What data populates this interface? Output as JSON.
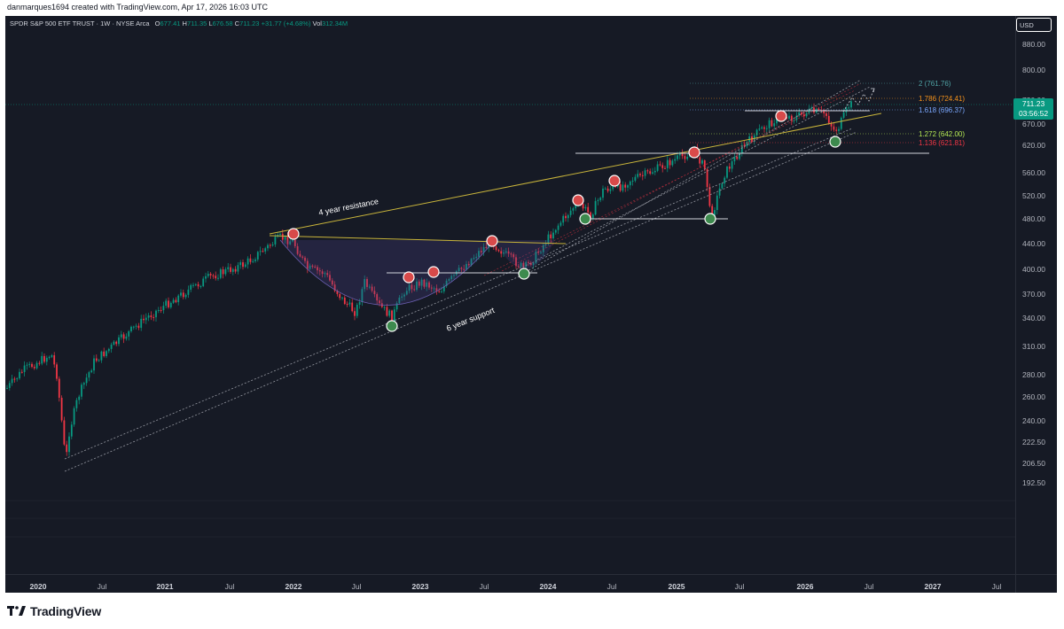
{
  "header": {
    "text": "danmarques1694 created with TradingView.com, Apr 17, 2026 16:03 UTC"
  },
  "legend": {
    "symbol": "SPDR S&P 500 ETF TRUST · 1W · NYSE Arca",
    "o_label": "O",
    "o": "677.41",
    "h_label": "H",
    "h": "711.35",
    "l_label": "L",
    "l": "676.58",
    "c_label": "C",
    "c": "711.23",
    "change": "+31.77 (+4.68%)",
    "vol_label": "Vol",
    "vol": "312.34M"
  },
  "currency": "USD",
  "price_scale": [
    "880.00",
    "800.00",
    "730.00",
    "670.00",
    "620.00",
    "560.00",
    "520.00",
    "480.00",
    "440.00",
    "400.00",
    "370.00",
    "340.00",
    "310.00",
    "280.00",
    "260.00",
    "240.00",
    "222.50",
    "206.50",
    "192.50"
  ],
  "last_price": {
    "price": "711.23",
    "countdown": "03:56:52",
    "color": "#089981"
  },
  "time_axis": [
    {
      "label": "2020",
      "year": true
    },
    {
      "label": "Jul",
      "year": false
    },
    {
      "label": "2021",
      "year": true
    },
    {
      "label": "Jul",
      "year": false
    },
    {
      "label": "2022",
      "year": true
    },
    {
      "label": "Jul",
      "year": false
    },
    {
      "label": "2023",
      "year": true
    },
    {
      "label": "Jul",
      "year": false
    },
    {
      "label": "2024",
      "year": true
    },
    {
      "label": "Jul",
      "year": false
    },
    {
      "label": "2025",
      "year": true
    },
    {
      "label": "Jul",
      "year": false
    },
    {
      "label": "2026",
      "year": true
    },
    {
      "label": "Jul",
      "year": false
    },
    {
      "label": "2027",
      "year": true
    },
    {
      "label": "Jul",
      "year": false
    }
  ],
  "fib_levels": [
    {
      "label": "2 (761.76)",
      "color": "#4fa3a5"
    },
    {
      "label": "1.786 (724.41)",
      "color": "#f7931a"
    },
    {
      "label": "1.618 (696.37)",
      "color": "#7aa8ff"
    },
    {
      "label": "1.272 (642.00)",
      "color": "#b5e853"
    },
    {
      "label": "1.136 (621.81)",
      "color": "#f23645"
    }
  ],
  "annotations": {
    "resistance": "4 year resistance",
    "support": "6 year support"
  },
  "colors": {
    "up": "#089981",
    "down": "#f23645",
    "background": "#161a25",
    "trendline": "#c9b53b"
  },
  "brand": {
    "name": "TradingView"
  }
}
